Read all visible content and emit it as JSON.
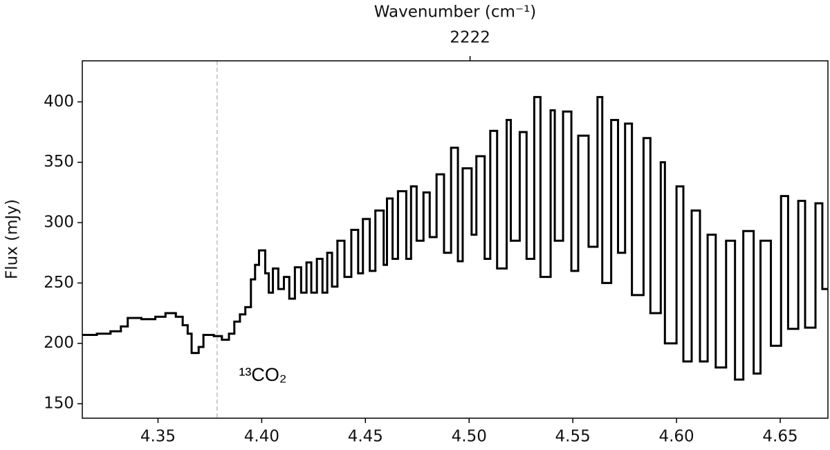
{
  "chart_data": {
    "type": "step",
    "ylabel": "Flux (mJy)",
    "x2label": "Wavenumber (cm⁻¹)",
    "x2ticks": [
      2222
    ],
    "xlim": [
      4.3135,
      4.673
    ],
    "ylim": [
      138,
      434
    ],
    "xticks": [
      4.35,
      {
        "value": 4.4,
        "label": "4.40"
      },
      4.45,
      {
        "value": 4.5,
        "label": "4.50"
      },
      4.55,
      {
        "value": 4.6,
        "label": "4.60"
      },
      4.65
    ],
    "yticks": [
      150,
      200,
      250,
      300,
      350,
      400
    ],
    "vlines": [
      {
        "x": 4.3785,
        "color": "#bbbbbb",
        "style": "dashed"
      }
    ],
    "annotations": [
      {
        "text": "¹³CO₂",
        "x": 4.389,
        "y": 173
      }
    ],
    "series": [
      {
        "color": "#000000",
        "x": [
          4.3135,
          4.3205,
          4.3271,
          4.3321,
          4.3354,
          4.342,
          4.3487,
          4.3536,
          4.3586,
          4.3619,
          4.3643,
          4.3662,
          4.3696,
          4.3719,
          4.3769,
          4.3808,
          4.3842,
          4.3868,
          4.3895,
          4.3921,
          4.3948,
          4.3968,
          4.3987,
          4.4017,
          4.4034,
          4.4054,
          4.408,
          4.4107,
          4.4133,
          4.416,
          4.419,
          4.4216,
          4.4239,
          4.4266,
          4.4293,
          4.4316,
          4.4339,
          4.4365,
          4.4399,
          4.4432,
          4.4465,
          4.4488,
          4.4521,
          4.4548,
          4.4588,
          4.4604,
          4.4631,
          4.4657,
          4.4697,
          4.472,
          4.4747,
          4.478,
          4.481,
          4.4843,
          4.4879,
          4.4913,
          4.4946,
          4.4969,
          4.5012,
          4.5035,
          4.5075,
          4.5102,
          4.5135,
          4.5181,
          4.5201,
          4.5244,
          4.5277,
          4.5314,
          4.5344,
          4.5393,
          4.5413,
          4.5453,
          4.5493,
          4.5526,
          4.5576,
          4.5619,
          4.5642,
          4.5685,
          4.5718,
          4.5752,
          4.5785,
          4.5841,
          4.5874,
          4.5924,
          4.5944,
          4.6,
          4.6033,
          4.6073,
          4.6113,
          4.615,
          4.6189,
          4.6239,
          4.6282,
          4.6322,
          4.6372,
          4.6405,
          4.6455,
          4.6504,
          4.6538,
          4.6587,
          4.662,
          4.667,
          4.6703
        ],
        "values": [
          207,
          208,
          210,
          214,
          221,
          220,
          222,
          225,
          222,
          215,
          208,
          192,
          197,
          207,
          206,
          203,
          208,
          218,
          224,
          230,
          253,
          265,
          277,
          258,
          242,
          262,
          245,
          255,
          237,
          263,
          242,
          267,
          242,
          270,
          242,
          275,
          247,
          285,
          255,
          294,
          258,
          303,
          260,
          310,
          265,
          320,
          270,
          326,
          270,
          330,
          285,
          325,
          288,
          340,
          275,
          362,
          268,
          345,
          290,
          355,
          270,
          376,
          262,
          385,
          285,
          375,
          270,
          404,
          255,
          393,
          285,
          392,
          260,
          372,
          280,
          404,
          250,
          385,
          275,
          382,
          240,
          370,
          225,
          350,
          200,
          330,
          185,
          310,
          185,
          290,
          180,
          285,
          170,
          293,
          175,
          285,
          198,
          322,
          212,
          318,
          213,
          316,
          245
        ]
      }
    ]
  }
}
